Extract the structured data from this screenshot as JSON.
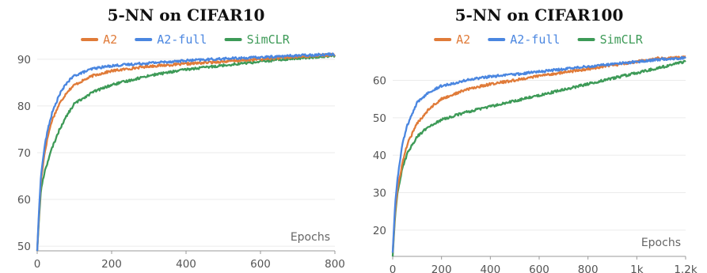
{
  "chart_data": [
    {
      "type": "line",
      "title": "5-NN on CIFAR10",
      "xlabel": "Epochs",
      "ylabel": "",
      "xlim": [
        0,
        800
      ],
      "ylim": [
        49,
        91.5
      ],
      "xticks": [
        0,
        200,
        400,
        600,
        800
      ],
      "xtick_labels": [
        "0",
        "200",
        "400",
        "600",
        "800"
      ],
      "yticks": [
        50,
        60,
        70,
        80,
        90
      ],
      "ytick_labels": [
        "50",
        "60",
        "70",
        "80",
        "90"
      ],
      "grid": true,
      "legend_position": "top-center",
      "series": [
        {
          "name": "A2",
          "color": "#e07b39",
          "x": [
            0,
            5,
            10,
            20,
            30,
            40,
            60,
            80,
            100,
            150,
            200,
            300,
            400,
            500,
            600,
            700,
            800
          ],
          "y": [
            49,
            57,
            64,
            70,
            74,
            77,
            80.5,
            83,
            84.5,
            86.5,
            87.5,
            88.5,
            89,
            89.5,
            90,
            90.5,
            91
          ]
        },
        {
          "name": "A2-full",
          "color": "#4a86e0",
          "x": [
            0,
            5,
            10,
            20,
            30,
            40,
            60,
            80,
            100,
            150,
            200,
            300,
            400,
            500,
            600,
            700,
            800
          ],
          "y": [
            49,
            58,
            65,
            71.5,
            75.5,
            78.5,
            82.5,
            85,
            86.5,
            88,
            88.6,
            89.2,
            89.7,
            90.1,
            90.4,
            90.8,
            91.1
          ]
        },
        {
          "name": "SimCLR",
          "color": "#3d9a57",
          "x": [
            0,
            5,
            10,
            20,
            30,
            40,
            60,
            80,
            100,
            150,
            200,
            300,
            400,
            500,
            600,
            700,
            800
          ],
          "y": [
            49,
            56,
            62,
            66,
            68.5,
            71,
            75,
            78,
            80.5,
            83,
            84.5,
            86.5,
            87.8,
            88.7,
            89.5,
            90.2,
            90.8
          ]
        }
      ]
    },
    {
      "type": "line",
      "title": "5-NN on CIFAR100",
      "xlabel": "Epochs",
      "ylabel": "",
      "xlim": [
        0,
        1200
      ],
      "ylim": [
        13,
        67.5
      ],
      "xticks": [
        0,
        200,
        400,
        600,
        800,
        1000,
        1200
      ],
      "xtick_labels": [
        "0",
        "200",
        "400",
        "600",
        "800",
        "1k",
        "1.2k"
      ],
      "yticks": [
        20,
        30,
        40,
        50,
        60
      ],
      "ytick_labels": [
        "20",
        "30",
        "40",
        "50",
        "60"
      ],
      "grid": true,
      "legend_position": "top-center",
      "series": [
        {
          "name": "A2",
          "color": "#e07b39",
          "x": [
            0,
            10,
            20,
            40,
            60,
            100,
            150,
            200,
            300,
            400,
            500,
            600,
            800,
            1000,
            1100,
            1200
          ],
          "y": [
            14,
            25,
            31,
            38,
            43,
            48.5,
            52.5,
            55,
            57.5,
            59,
            60,
            61.2,
            63,
            65,
            66,
            66.2
          ]
        },
        {
          "name": "A2-full",
          "color": "#4a86e0",
          "x": [
            0,
            10,
            20,
            40,
            60,
            100,
            150,
            200,
            300,
            400,
            500,
            600,
            800,
            1000,
            1100,
            1200
          ],
          "y": [
            14,
            27,
            34,
            43,
            48,
            54,
            57,
            58.5,
            60,
            61,
            61.6,
            62.3,
            63.7,
            65,
            65.6,
            66
          ]
        },
        {
          "name": "SimCLR",
          "color": "#3d9a57",
          "x": [
            0,
            10,
            20,
            40,
            60,
            100,
            150,
            200,
            300,
            400,
            500,
            600,
            800,
            1000,
            1100,
            1200
          ],
          "y": [
            13,
            24,
            30,
            36.5,
            40.5,
            45,
            47.8,
            49.5,
            51.5,
            53,
            54.5,
            56,
            59,
            62,
            63.5,
            65
          ]
        }
      ]
    }
  ]
}
